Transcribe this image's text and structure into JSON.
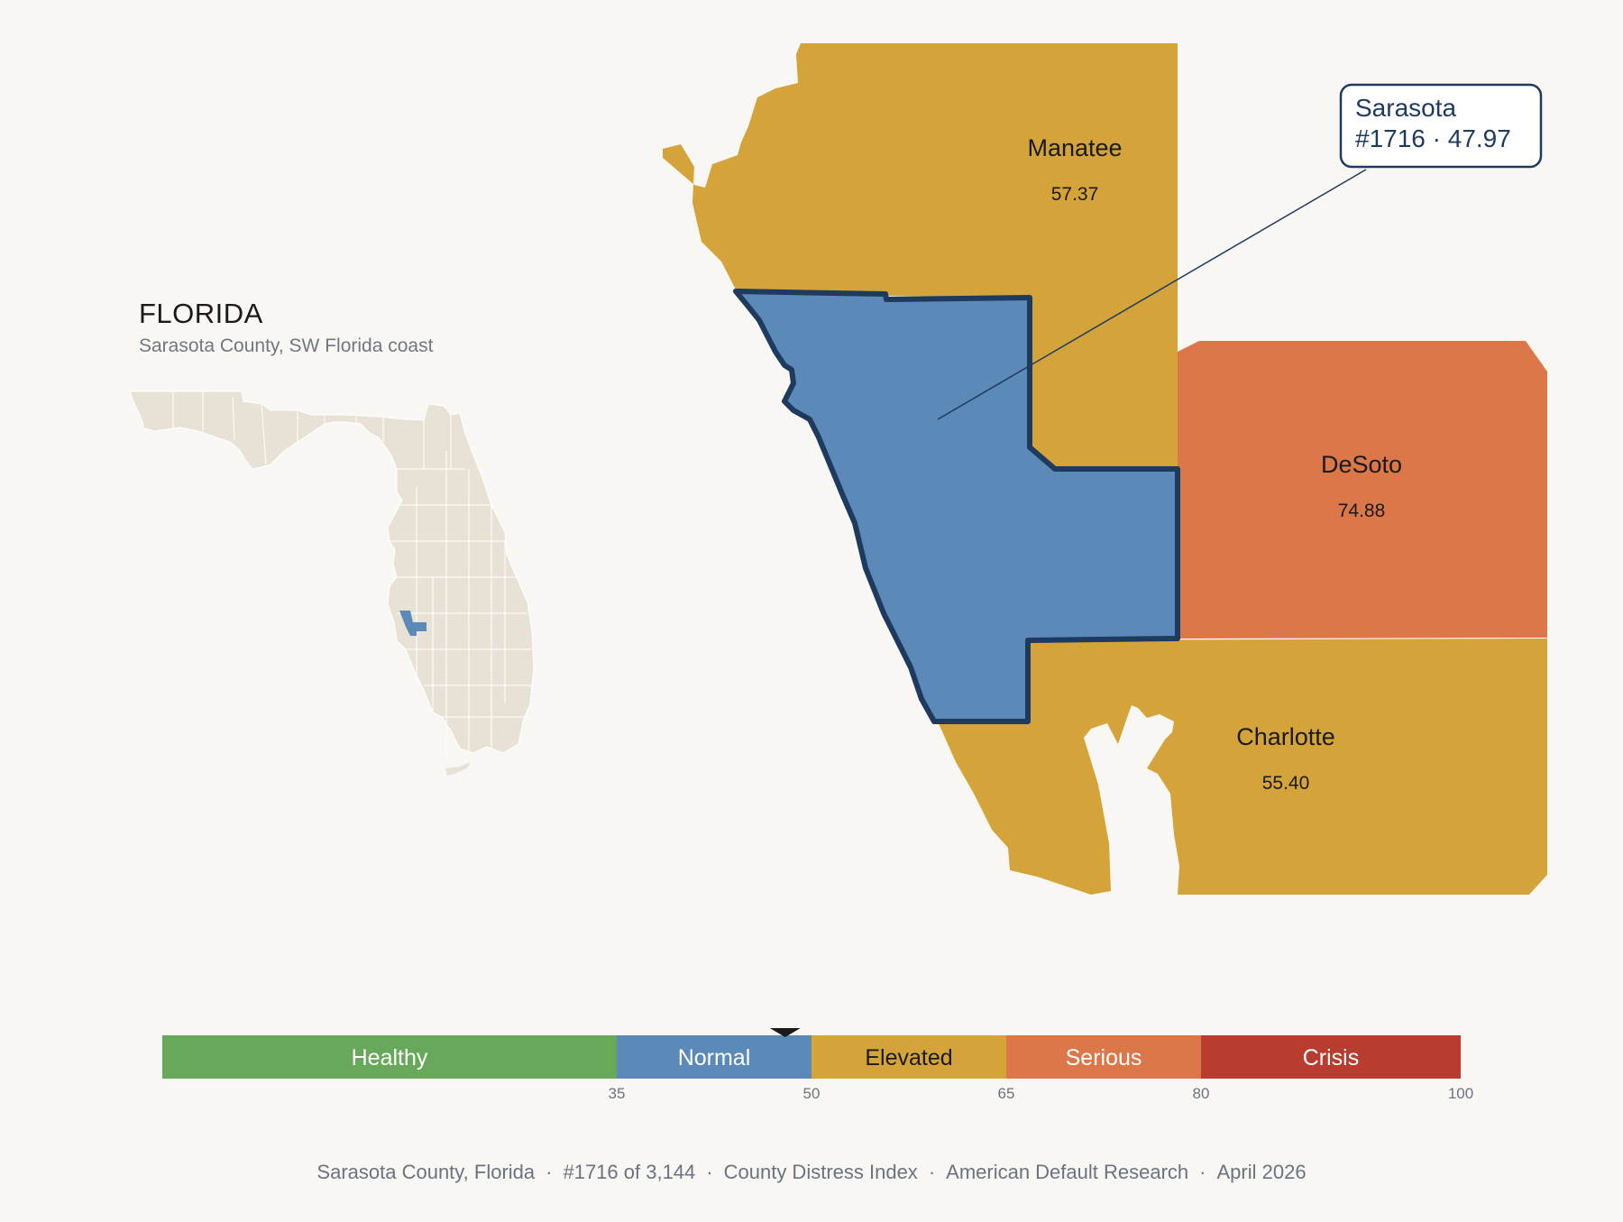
{
  "state": {
    "name": "FLORIDA",
    "subtitle": "Sarasota County, SW Florida coast"
  },
  "counties": {
    "manatee": {
      "name": "Manatee",
      "score": "57.37",
      "color": "#d4a43b"
    },
    "desoto": {
      "name": "DeSoto",
      "score": "74.88",
      "color": "#dc7749"
    },
    "charlotte": {
      "name": "Charlotte",
      "score": "55.40",
      "color": "#d4a43b"
    },
    "sarasota": {
      "name": "Sarasota",
      "score": "47.97",
      "color": "#5b89b8",
      "outline_color": "#1e3a5f"
    }
  },
  "callout": {
    "line1": "Sarasota",
    "line2": "#1716 · 47.97"
  },
  "legend": {
    "bands": [
      {
        "label": "Healthy",
        "from": 0,
        "to": 35,
        "color": "#68a85a",
        "text_color": "#ffffff"
      },
      {
        "label": "Normal",
        "from": 35,
        "to": 50,
        "color": "#5b89b8",
        "text_color": "#ffffff"
      },
      {
        "label": "Elevated",
        "from": 50,
        "to": 65,
        "color": "#d4a43b",
        "text_color": "#1a1a1a"
      },
      {
        "label": "Serious",
        "from": 65,
        "to": 80,
        "color": "#dc7749",
        "text_color": "#ffffff"
      },
      {
        "label": "Crisis",
        "from": 80,
        "to": 100,
        "color": "#b93d2e",
        "text_color": "#ffffff"
      }
    ],
    "ticks": [
      "35",
      "50",
      "65",
      "80",
      "100"
    ],
    "marker_value": 47.97
  },
  "footer": {
    "location": "Sarasota County, Florida",
    "rank": "#1716 of 3,144",
    "index": "County Distress Index",
    "source": "American Default Research",
    "date": "April 2026"
  },
  "colors": {
    "background": "#f9f7f3",
    "inset_land": "#e8e2d6",
    "inset_highlight": "#5b89b8"
  }
}
